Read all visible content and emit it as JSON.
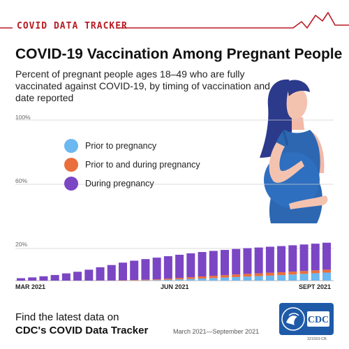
{
  "header": {
    "brand": "COVID DATA TRACKER"
  },
  "chart_data": {
    "type": "bar",
    "stacked": true,
    "title": "COVID-19 Vaccination Among Pregnant People",
    "subtitle": "Percent of pregnant people ages 18–49 who are fully vaccinated against COVID-19, by timing of vaccination and date reported",
    "y_ticks": [
      "100%",
      "60%",
      "20%"
    ],
    "ylim": [
      0,
      100
    ],
    "grid": true,
    "x_labels": [
      "MAR 2021",
      "JUN 2021",
      "SEPT 2021"
    ],
    "legend": {
      "placement": "upper-left",
      "items": [
        {
          "label": "Prior to pregnancy",
          "color": "#6cb8f0"
        },
        {
          "label": "Prior to and during pregnancy",
          "color": "#ea6f3c"
        },
        {
          "label": "During pregnancy",
          "color": "#7b46c4"
        }
      ]
    },
    "series": [
      {
        "name": "Prior to pregnancy",
        "color": "#6cb8f0",
        "values": [
          0,
          0,
          0,
          0,
          0,
          0,
          0,
          0,
          0,
          0,
          0.1,
          0.2,
          0.3,
          0.5,
          0.8,
          1.0,
          1.3,
          1.6,
          1.9,
          2.2,
          2.5,
          2.8,
          3.1,
          3.4,
          3.8,
          4.2,
          4.6,
          5.0
        ]
      },
      {
        "name": "Prior to and during pregnancy",
        "color": "#ea6f3c",
        "values": [
          0,
          0,
          0,
          0,
          0,
          0,
          0,
          0.1,
          0.1,
          0.2,
          0.3,
          0.4,
          0.5,
          0.7,
          0.9,
          1.1,
          1.3,
          1.4,
          1.5,
          1.6,
          1.7,
          1.7,
          1.8,
          1.8,
          1.8,
          1.8,
          1.8,
          1.8
        ]
      },
      {
        "name": "During pregnancy",
        "color": "#7b46c4",
        "values": [
          1.5,
          2.0,
          2.7,
          3.5,
          4.5,
          5.5,
          6.8,
          8.2,
          9.6,
          11.0,
          12.0,
          12.8,
          13.5,
          14.0,
          14.4,
          14.9,
          15.2,
          15.5,
          15.7,
          15.9,
          16.0,
          16.1,
          16.2,
          16.3,
          16.4,
          16.5,
          16.6,
          16.8
        ]
      }
    ]
  },
  "footer": {
    "cta_line1": "Find the latest data on",
    "cta_line2": "CDC's COVID Data Tracker",
    "date_range": "March 2021—September 2021",
    "code": "321563-CB",
    "logo_text": "CDC"
  }
}
